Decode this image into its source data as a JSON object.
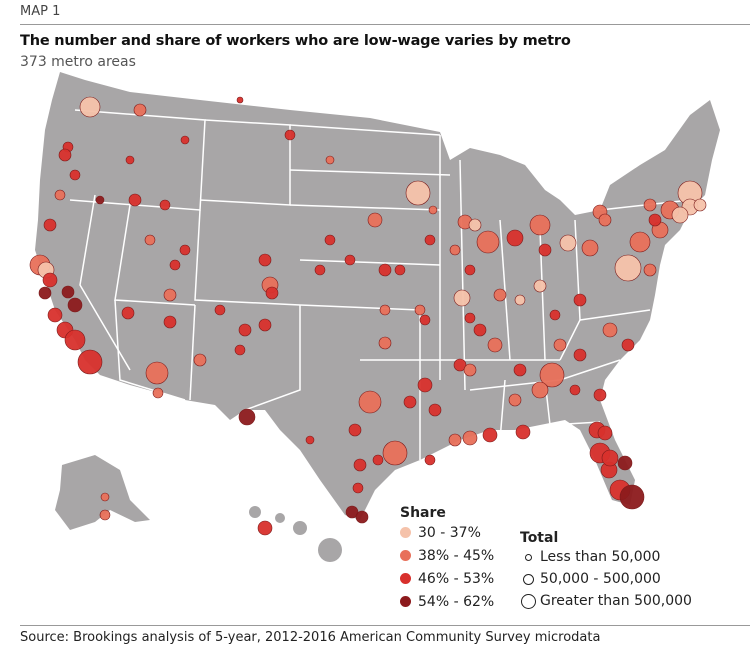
{
  "header": {
    "kicker": "MAP 1",
    "title": "The number and share of workers who are low-wage varies by metro",
    "subtitle": "373 metro areas"
  },
  "legend": {
    "share_title": "Share",
    "share": [
      {
        "label": "30 - 37%",
        "color": "#f5c2aa"
      },
      {
        "label": "38% - 45%",
        "color": "#e8705a"
      },
      {
        "label": "46% - 53%",
        "color": "#d8302c"
      },
      {
        "label": "54% - 62%",
        "color": "#8c1a1c"
      }
    ],
    "total_title": "Total",
    "total": [
      {
        "label": "Less than 50,000"
      },
      {
        "label": "50,000 - 500,000"
      },
      {
        "label": "Greater than 500,000"
      }
    ]
  },
  "colors": {
    "land": "#a8a6a7",
    "border": "#ffffff"
  },
  "source": "Source: Brookings analysis of 5-year, 2012-2016 American Community Survey microdata"
}
